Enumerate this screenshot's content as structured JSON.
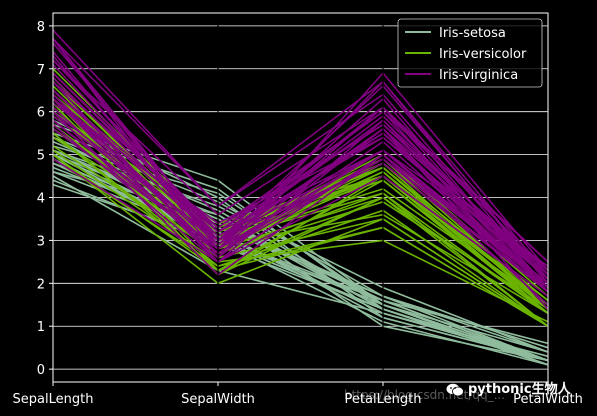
{
  "chart_data": {
    "type": "line",
    "subtype": "parallel-coordinates",
    "categories": [
      "SepalLength",
      "SepalWidth",
      "PetalLength",
      "PetalWidth"
    ],
    "ylim": [
      -0.3,
      8.3
    ],
    "yticks": [
      0,
      1,
      2,
      3,
      4,
      5,
      6,
      7,
      8
    ],
    "grid": true,
    "legend_position": "top-right",
    "background": "#000000",
    "series": [
      {
        "name": "Iris-setosa",
        "color": "#8fbc9c",
        "lines": [
          [
            4.3,
            3.0,
            1.1,
            0.1
          ],
          [
            4.4,
            2.9,
            1.4,
            0.2
          ],
          [
            4.6,
            3.1,
            1.5,
            0.2
          ],
          [
            4.7,
            3.2,
            1.3,
            0.2
          ],
          [
            4.8,
            3.4,
            1.6,
            0.2
          ],
          [
            4.9,
            3.0,
            1.4,
            0.2
          ],
          [
            5.0,
            3.6,
            1.4,
            0.2
          ],
          [
            5.0,
            3.5,
            1.6,
            0.6
          ],
          [
            5.1,
            3.5,
            1.4,
            0.2
          ],
          [
            5.1,
            3.8,
            1.9,
            0.4
          ],
          [
            5.2,
            4.1,
            1.5,
            0.1
          ],
          [
            5.4,
            3.9,
            1.7,
            0.4
          ],
          [
            5.4,
            3.4,
            1.7,
            0.2
          ],
          [
            5.5,
            4.2,
            1.4,
            0.2
          ],
          [
            5.7,
            4.4,
            1.5,
            0.4
          ],
          [
            5.8,
            4.0,
            1.2,
            0.2
          ],
          [
            4.5,
            2.3,
            1.3,
            0.3
          ],
          [
            5.0,
            3.0,
            1.6,
            0.2
          ],
          [
            4.8,
            3.0,
            1.4,
            0.1
          ],
          [
            5.3,
            3.7,
            1.5,
            0.2
          ],
          [
            4.6,
            3.6,
            1.0,
            0.2
          ],
          [
            5.1,
            3.3,
            1.7,
            0.5
          ],
          [
            4.8,
            3.1,
            1.6,
            0.2
          ],
          [
            5.0,
            3.2,
            1.2,
            0.2
          ]
        ]
      },
      {
        "name": "Iris-versicolor",
        "color": "#6ab300",
        "lines": [
          [
            7.0,
            3.2,
            4.7,
            1.4
          ],
          [
            6.4,
            3.2,
            4.5,
            1.5
          ],
          [
            6.9,
            3.1,
            4.9,
            1.5
          ],
          [
            5.5,
            2.3,
            4.0,
            1.3
          ],
          [
            6.5,
            2.8,
            4.6,
            1.5
          ],
          [
            5.7,
            2.8,
            4.5,
            1.3
          ],
          [
            6.3,
            3.3,
            4.7,
            1.6
          ],
          [
            4.9,
            2.4,
            3.3,
            1.0
          ],
          [
            6.6,
            2.9,
            4.6,
            1.3
          ],
          [
            5.2,
            2.7,
            3.9,
            1.4
          ],
          [
            5.0,
            2.0,
            3.5,
            1.0
          ],
          [
            5.9,
            3.0,
            4.2,
            1.5
          ],
          [
            6.0,
            2.2,
            4.0,
            1.0
          ],
          [
            6.1,
            2.9,
            4.7,
            1.4
          ],
          [
            5.6,
            2.9,
            3.6,
            1.3
          ],
          [
            6.7,
            3.1,
            4.4,
            1.4
          ],
          [
            5.8,
            2.7,
            4.1,
            1.0
          ],
          [
            6.2,
            2.2,
            4.5,
            1.5
          ],
          [
            5.9,
            3.2,
            4.8,
            1.8
          ],
          [
            6.8,
            2.8,
            4.8,
            1.4
          ],
          [
            6.7,
            3.0,
            5.0,
            1.7
          ],
          [
            5.7,
            2.6,
            3.5,
            1.0
          ],
          [
            5.1,
            2.5,
            3.0,
            1.1
          ],
          [
            5.5,
            2.4,
            3.7,
            1.0
          ],
          [
            6.0,
            3.4,
            4.5,
            1.6
          ],
          [
            5.4,
            3.0,
            4.5,
            1.5
          ],
          [
            6.3,
            2.3,
            4.4,
            1.3
          ],
          [
            5.6,
            3.0,
            4.1,
            1.3
          ],
          [
            6.1,
            2.8,
            4.0,
            1.3
          ],
          [
            5.0,
            2.3,
            3.3,
            1.0
          ]
        ]
      },
      {
        "name": "Iris-virginica",
        "color": "#800080",
        "lines": [
          [
            6.3,
            3.3,
            6.0,
            2.5
          ],
          [
            5.8,
            2.7,
            5.1,
            1.9
          ],
          [
            7.1,
            3.0,
            5.9,
            2.1
          ],
          [
            6.3,
            2.9,
            5.6,
            1.8
          ],
          [
            6.5,
            3.0,
            5.8,
            2.2
          ],
          [
            7.6,
            3.0,
            6.6,
            2.1
          ],
          [
            4.9,
            2.5,
            4.5,
            1.7
          ],
          [
            7.3,
            2.9,
            6.3,
            1.8
          ],
          [
            6.7,
            2.5,
            5.8,
            1.8
          ],
          [
            7.2,
            3.6,
            6.1,
            2.5
          ],
          [
            6.5,
            3.2,
            5.1,
            2.0
          ],
          [
            6.4,
            2.7,
            5.3,
            1.9
          ],
          [
            6.8,
            3.0,
            5.5,
            2.1
          ],
          [
            5.7,
            2.5,
            5.0,
            2.0
          ],
          [
            5.8,
            2.8,
            5.1,
            2.4
          ],
          [
            7.7,
            3.8,
            6.7,
            2.2
          ],
          [
            7.7,
            2.6,
            6.9,
            2.3
          ],
          [
            6.0,
            2.2,
            5.0,
            1.5
          ],
          [
            6.9,
            3.2,
            5.7,
            2.3
          ],
          [
            5.6,
            2.8,
            4.9,
            2.0
          ],
          [
            7.7,
            2.8,
            6.7,
            2.0
          ],
          [
            6.3,
            2.7,
            4.9,
            1.8
          ],
          [
            6.7,
            3.3,
            5.7,
            2.1
          ],
          [
            7.2,
            3.2,
            6.0,
            1.8
          ],
          [
            7.9,
            3.8,
            6.4,
            2.0
          ],
          [
            6.4,
            2.8,
            5.6,
            2.2
          ],
          [
            6.1,
            2.6,
            5.6,
            1.4
          ],
          [
            7.4,
            2.8,
            6.1,
            1.9
          ],
          [
            6.2,
            3.4,
            5.4,
            2.3
          ],
          [
            5.9,
            3.0,
            5.1,
            1.8
          ],
          [
            6.0,
            3.0,
            4.8,
            1.8
          ],
          [
            6.9,
            3.1,
            5.4,
            2.1
          ],
          [
            6.5,
            3.0,
            5.5,
            1.8
          ],
          [
            7.7,
            3.0,
            6.1,
            2.3
          ],
          [
            6.3,
            2.5,
            5.0,
            1.9
          ]
        ]
      }
    ]
  },
  "watermark": {
    "url_text": "https://blog.csdn.net/qq_...",
    "brand_text": "pythonic生物人"
  }
}
